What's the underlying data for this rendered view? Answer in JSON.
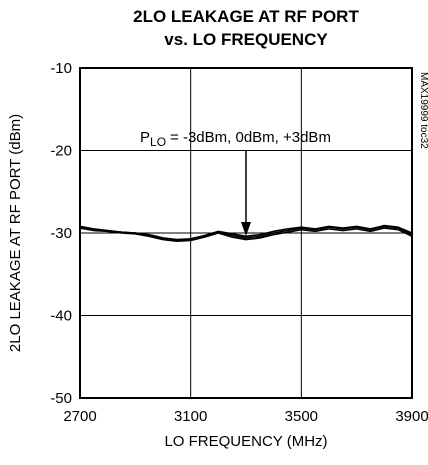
{
  "chart_data": {
    "type": "line",
    "title": [
      "2LO LEAKAGE AT RF PORT",
      "vs. LO FREQUENCY"
    ],
    "xlabel": "LO FREQUENCY (MHz)",
    "ylabel": "2LO LEAKAGE AT RF PORT (dBm)",
    "side_note": "MAX19999 toc32",
    "annotation": {
      "text": "P",
      "subscript": "LO",
      "rest": "= -3dBm, 0dBm, +3dBm"
    },
    "x": [
      2700,
      2750,
      2800,
      2850,
      2900,
      2950,
      3000,
      3050,
      3100,
      3150,
      3200,
      3250,
      3300,
      3350,
      3400,
      3450,
      3500,
      3550,
      3600,
      3650,
      3700,
      3750,
      3800,
      3850,
      3900
    ],
    "series": [
      {
        "color": "#000000",
        "values": [
          -29.3,
          -29.6,
          -29.8,
          -29.9,
          -30.0,
          -30.3,
          -30.7,
          -30.9,
          -30.8,
          -30.4,
          -29.9,
          -30.3,
          -30.6,
          -30.4,
          -30.0,
          -29.7,
          -29.4,
          -29.6,
          -29.3,
          -29.5,
          -29.3,
          -29.6,
          -29.2,
          -29.4,
          -30.2
        ]
      },
      {
        "color": "#000000",
        "values": [
          -29.4,
          -29.7,
          -29.8,
          -30.0,
          -30.1,
          -30.4,
          -30.8,
          -31.0,
          -30.9,
          -30.5,
          -30.0,
          -30.5,
          -30.8,
          -30.6,
          -30.2,
          -29.9,
          -29.6,
          -29.8,
          -29.5,
          -29.7,
          -29.5,
          -29.8,
          -29.4,
          -29.6,
          -30.4
        ]
      },
      {
        "color": "#000000",
        "values": [
          -29.2,
          -29.5,
          -29.7,
          -29.9,
          -30.0,
          -30.2,
          -30.6,
          -30.8,
          -30.7,
          -30.3,
          -29.8,
          -30.1,
          -30.4,
          -30.2,
          -29.8,
          -29.5,
          -29.3,
          -29.5,
          -29.2,
          -29.4,
          -29.2,
          -29.5,
          -29.1,
          -29.3,
          -30.0
        ]
      }
    ],
    "xlim": [
      2700,
      3900
    ],
    "xticks": [
      2700,
      3100,
      3500,
      3900
    ],
    "ylim": [
      -50,
      -10
    ],
    "yticks": [
      -50,
      -40,
      -30,
      -20,
      -10
    ],
    "grid": true
  }
}
